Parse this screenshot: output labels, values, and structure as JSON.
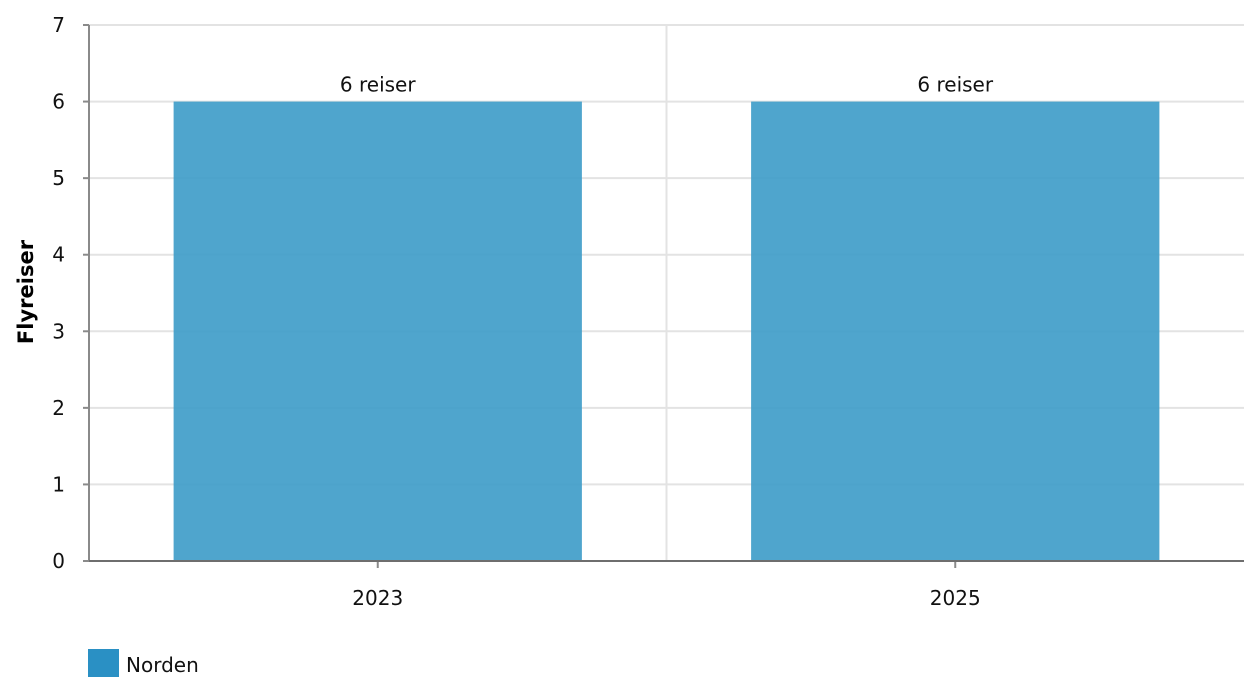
{
  "chart_data": {
    "type": "bar",
    "categories": [
      "2023",
      "2025"
    ],
    "series": [
      {
        "name": "Norden",
        "values": [
          6,
          6
        ],
        "labels": [
          "6 reiser",
          "6 reiser"
        ],
        "color": "#3c9bc8",
        "legend_color": "#2a90c4"
      }
    ],
    "title": "",
    "xlabel": "",
    "ylabel": "Flyreiser",
    "ylim": [
      0,
      7
    ],
    "yticks": [
      "0",
      "1",
      "2",
      "3",
      "4",
      "5",
      "6",
      "7"
    ],
    "grid": true,
    "legend": "bottom-left"
  }
}
